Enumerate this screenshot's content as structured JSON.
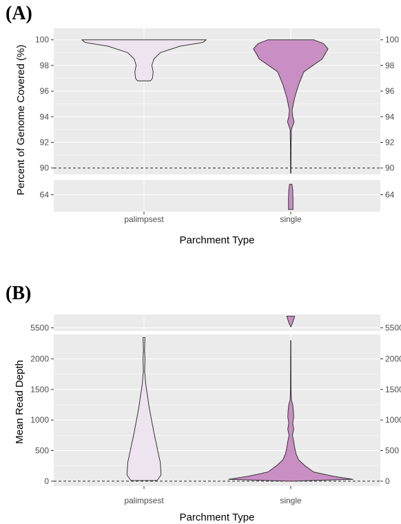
{
  "panel_a_label": "(A)",
  "panel_b_label": "(B)",
  "colors": {
    "panel_bg": "#ebebeb",
    "grid": "#ffffff",
    "palimpsest_fill": "#ede4ef",
    "single_fill": "#c98fc4",
    "outline": "#333333"
  },
  "chart_data": [
    {
      "type": "violin",
      "panel": "A",
      "xlabel": "Parchment Type",
      "ylabel": "Percent of Genome Covered (%)",
      "categories": [
        "palimpsest",
        "single"
      ],
      "axis_break": "upper segment 89-100, lower segment 62-65",
      "yticks_upper": [
        90,
        92,
        94,
        96,
        98,
        100
      ],
      "yticks_lower": [
        64
      ],
      "reference_line": 90,
      "secondary_y_axis": true,
      "violins": [
        {
          "category": "palimpsest",
          "color": "#ede4ef",
          "profile": [
            [
              96.8,
              0.1
            ],
            [
              97.0,
              0.13
            ],
            [
              97.5,
              0.14
            ],
            [
              98.0,
              0.12
            ],
            [
              98.5,
              0.15
            ],
            [
              99.0,
              0.25
            ],
            [
              99.5,
              0.55
            ],
            [
              99.8,
              0.9
            ],
            [
              100.0,
              0.95
            ]
          ]
        },
        {
          "category": "single",
          "color": "#c98fc4",
          "profile": [
            [
              89.6,
              0.003
            ],
            [
              92.0,
              0.005
            ],
            [
              93.0,
              0.01
            ],
            [
              93.6,
              0.05
            ],
            [
              94.0,
              0.03
            ],
            [
              94.5,
              0.02
            ],
            [
              95.5,
              0.06
            ],
            [
              96.5,
              0.12
            ],
            [
              97.5,
              0.2
            ],
            [
              98.5,
              0.48
            ],
            [
              99.3,
              0.57
            ],
            [
              99.7,
              0.5
            ],
            [
              100.0,
              0.35
            ]
          ],
          "profile_lower": [
            [
              62.6,
              0.035
            ],
            [
              63.5,
              0.035
            ],
            [
              64.4,
              0.03
            ],
            [
              65.0,
              0.018
            ]
          ]
        }
      ]
    },
    {
      "type": "violin",
      "panel": "B",
      "xlabel": "Parchment Type",
      "ylabel": "Mean Read Depth",
      "categories": [
        "palimpsest",
        "single"
      ],
      "axis_break": "lower segment 0-2300, upper segment around 5500",
      "yticks_upper": [
        5500
      ],
      "yticks_lower": [
        0,
        500,
        1000,
        1500,
        2000
      ],
      "reference_line": 0,
      "secondary_y_axis": true,
      "violins": [
        {
          "category": "palimpsest",
          "color": "#ede4ef",
          "profile": [
            [
              10,
              0.2
            ],
            [
              100,
              0.26
            ],
            [
              300,
              0.25
            ],
            [
              500,
              0.21
            ],
            [
              800,
              0.15
            ],
            [
              1200,
              0.08
            ],
            [
              1600,
              0.025
            ],
            [
              1800,
              0.01
            ],
            [
              2000,
              0.015
            ],
            [
              2150,
              0.008
            ],
            [
              2350,
              0.015
            ]
          ]
        },
        {
          "category": "single",
          "color": "#c98fc4",
          "profile": [
            [
              0,
              0.02
            ],
            [
              30,
              0.95
            ],
            [
              80,
              0.65
            ],
            [
              150,
              0.35
            ],
            [
              250,
              0.22
            ],
            [
              350,
              0.12
            ],
            [
              450,
              0.08
            ],
            [
              550,
              0.06
            ],
            [
              650,
              0.045
            ],
            [
              750,
              0.025
            ],
            [
              850,
              0.045
            ],
            [
              950,
              0.03
            ],
            [
              1050,
              0.045
            ],
            [
              1150,
              0.04
            ],
            [
              1250,
              0.03
            ],
            [
              1330,
              0.01
            ],
            [
              1500,
              0.004
            ],
            [
              2300,
              0.002
            ]
          ],
          "profile_upper": [
            [
              5520,
              0.0
            ],
            [
              5620,
              0.03
            ],
            [
              5760,
              0.06
            ]
          ]
        }
      ]
    }
  ]
}
